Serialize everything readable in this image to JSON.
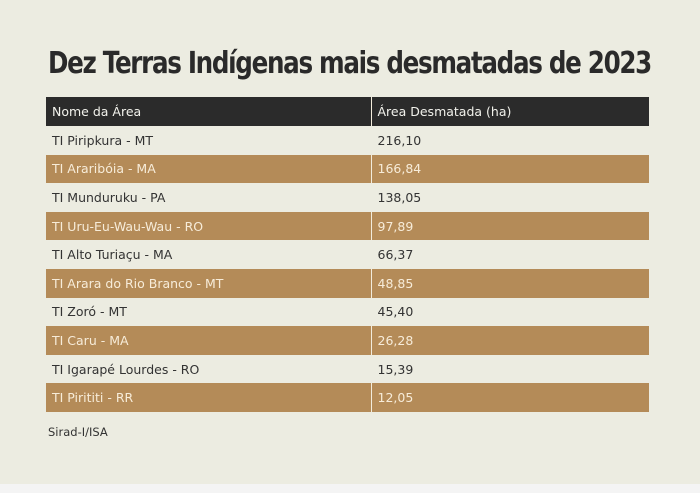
{
  "title": "Dez Terras Indígenas mais desmatadas de 2023",
  "table": {
    "headers": [
      "Nome da Área",
      "Área Desmatada (ha)"
    ],
    "rows": [
      {
        "name": "TI Piripkura - MT",
        "area": "216,10"
      },
      {
        "name": "TI Araribóia - MA",
        "area": "166,84"
      },
      {
        "name": "TI Munduruku - PA",
        "area": "138,05"
      },
      {
        "name": "TI Uru-Eu-Wau-Wau - RO",
        "area": "97,89"
      },
      {
        "name": "TI Alto Turiaçu - MA",
        "area": "66,37"
      },
      {
        "name": "TI Arara do Rio Branco - MT",
        "area": "48,85"
      },
      {
        "name": "TI Zoró - MT",
        "area": "45,40"
      },
      {
        "name": "TI Caru - MA",
        "area": "26,28"
      },
      {
        "name": "TI Igarapé Lourdes - RO",
        "area": "15,39"
      },
      {
        "name": "TI Pirititi - RR",
        "area": "12,05"
      }
    ]
  },
  "source": "Sirad-I/ISA",
  "colors": {
    "background": "#ecece1",
    "header_bg": "#2b2b2b",
    "stripe_bg": "#b48b58",
    "title_text": "#2a2a2a"
  }
}
